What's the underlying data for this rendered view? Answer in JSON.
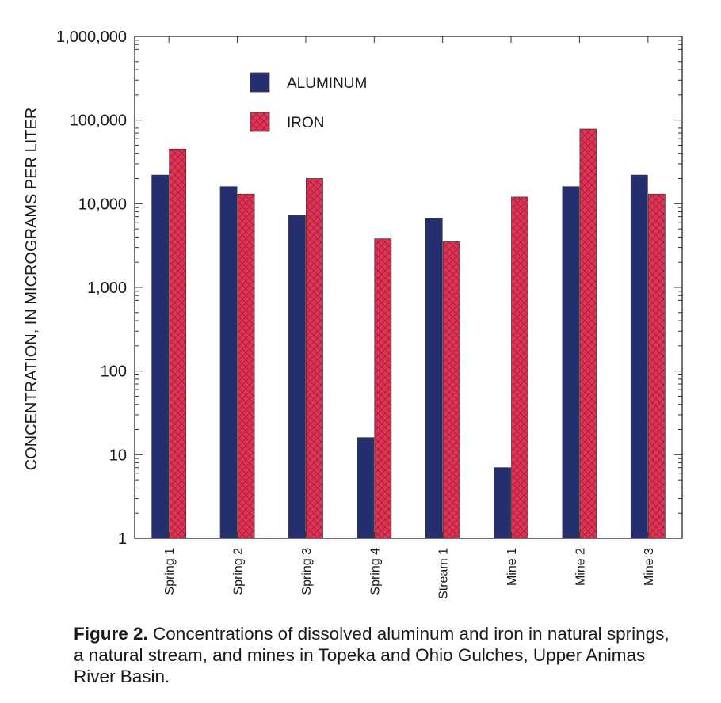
{
  "chart_data": {
    "type": "bar",
    "scale": "log",
    "title": "",
    "ylabel": "CONCENTRATION, IN MICROGRAMS PER LITER",
    "xlabel": "",
    "ylim": [
      1,
      1000000
    ],
    "y_ticks": [
      "1",
      "10",
      "100",
      "1,000",
      "10,000",
      "100,000",
      "1,000,000"
    ],
    "categories": [
      "Spring 1",
      "Spring 2",
      "Spring 3",
      "Spring 4",
      "Stream 1",
      "Mine 1",
      "Mine 2",
      "Mine 3"
    ],
    "series": [
      {
        "name": "ALUMINUM",
        "color": "#252e6e",
        "values": [
          22000,
          16000,
          7200,
          16,
          6700,
          7,
          16000,
          22000
        ]
      },
      {
        "name": "IRON",
        "color": "#e23355",
        "values": [
          45000,
          13000,
          20000,
          3800,
          3500,
          12000,
          78000,
          13000
        ]
      }
    ],
    "legend_position": "top-left"
  },
  "caption": {
    "label": "Figure 2.",
    "text": "Concentrations of dissolved aluminum and iron in natural springs, a natural stream, and mines in Topeka and Ohio Gulches, Upper Animas River Basin."
  }
}
